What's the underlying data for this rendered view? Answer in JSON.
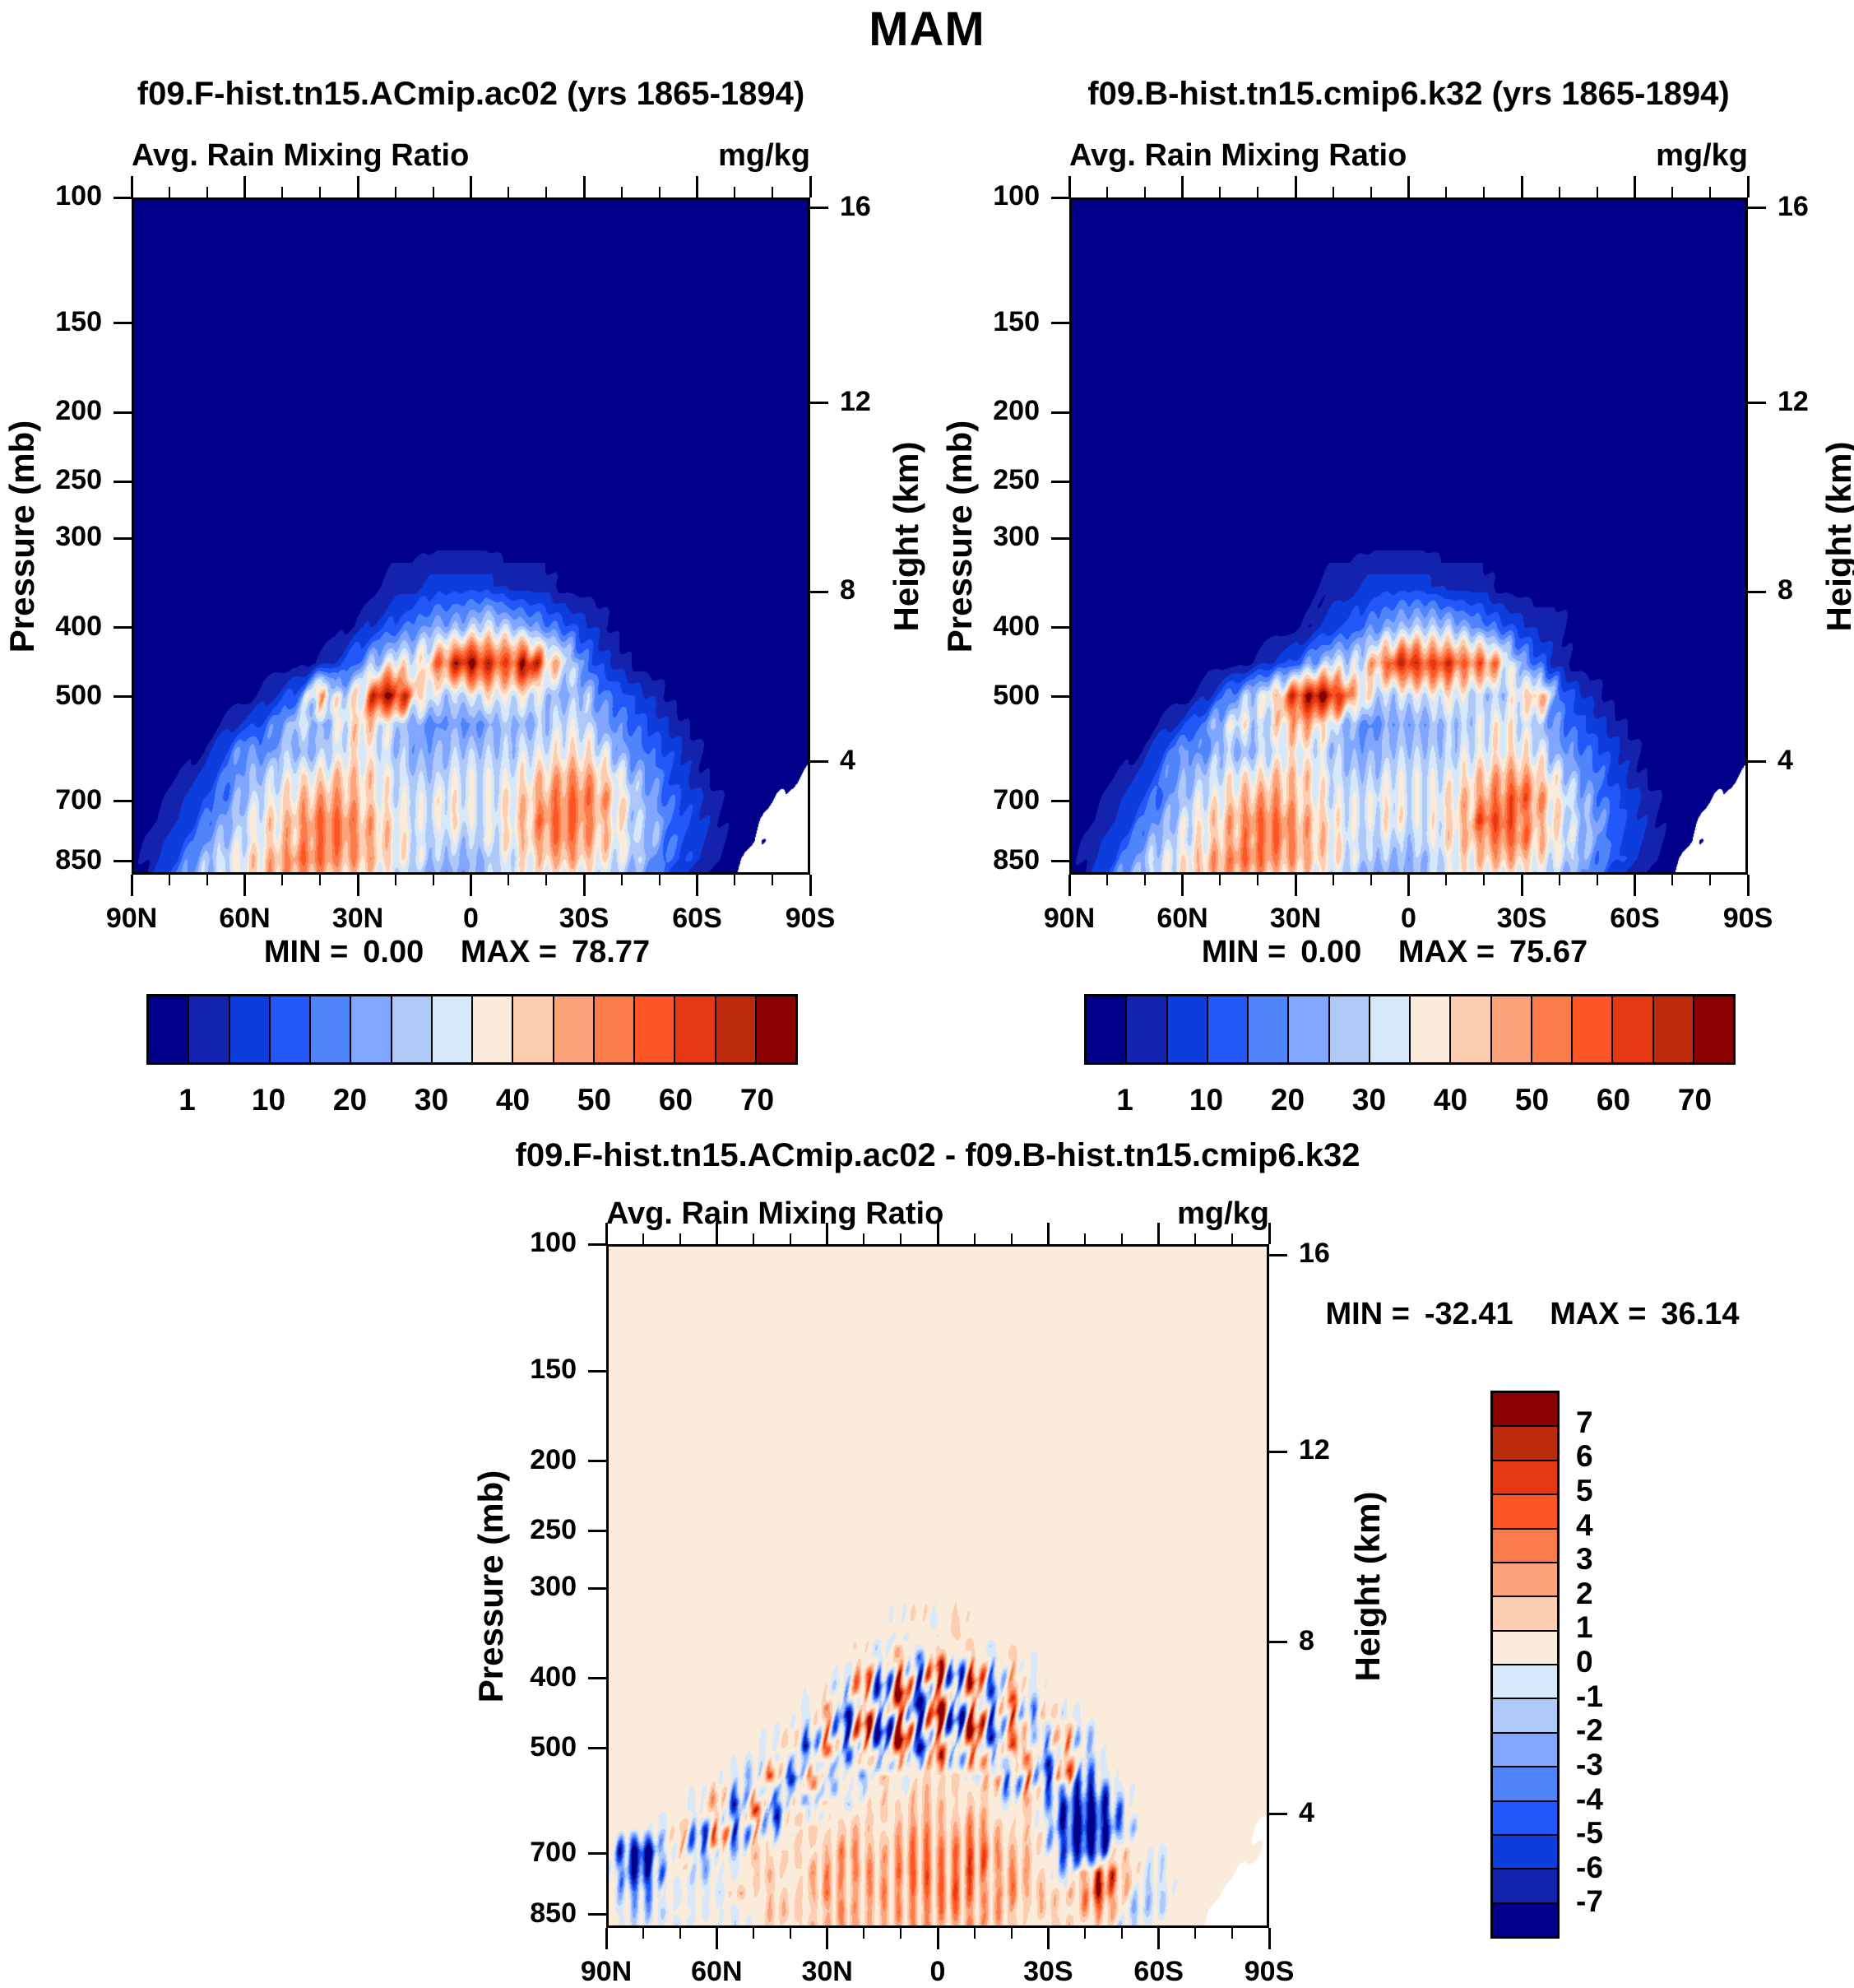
{
  "title": "MAM",
  "axes": {
    "pressure_label": "Pressure (mb)",
    "height_label": "Height (km)",
    "pressure_ticks": [
      "100",
      "150",
      "200",
      "250",
      "300",
      "400",
      "500",
      "700",
      "850"
    ],
    "pressure_tick_values": [
      100,
      150,
      200,
      250,
      300,
      400,
      500,
      700,
      850
    ],
    "pressure_top_mb": 100,
    "pressure_bottom_mb": 887,
    "height_ticks": [
      "16",
      "12",
      "8",
      "4"
    ],
    "height_tick_pressures_mb": [
      103.5,
      194.0,
      356.5,
      616.6
    ],
    "lat_tick_labels": [
      "90N",
      "60N",
      "30N",
      "0",
      "30S",
      "60S",
      "90S"
    ],
    "lat_major_step_deg": 30,
    "lat_minor_step_deg": 10
  },
  "panels": [
    {
      "title": "f09.F-hist.tn15.ACmip.ac02 (yrs 1865-1894)",
      "subtitle_left": "Avg. Rain Mixing Ratio",
      "units": "mg/kg",
      "min_label": "MIN =",
      "min_value": "0.00",
      "max_label": "MAX =",
      "max_value": "78.77"
    },
    {
      "title": "f09.B-hist.tn15.cmip6.k32 (yrs 1865-1894)",
      "subtitle_left": "Avg. Rain Mixing Ratio",
      "units": "mg/kg",
      "min_label": "MIN =",
      "min_value": "0.00",
      "max_label": "MAX =",
      "max_value": "75.67"
    },
    {
      "title": "f09.F-hist.tn15.ACmip.ac02 - f09.B-hist.tn15.cmip6.k32",
      "subtitle_left": "Avg. Rain Mixing Ratio",
      "units": "mg/kg",
      "min_label": "MIN =",
      "min_value": "-32.41",
      "max_label": "MAX =",
      "max_value": "36.14"
    }
  ],
  "colorbar_main": {
    "palette": [
      "#00008b",
      "#1423ae",
      "#0d3edd",
      "#2257fa",
      "#5084fa",
      "#80a6ff",
      "#aec8f8",
      "#d6e8fa",
      "#fbebda",
      "#fccdb0",
      "#fca379",
      "#fb7b4b",
      "#fd5523",
      "#e63812",
      "#bb2a0b",
      "#8b0000"
    ],
    "labels": [
      "1",
      "10",
      "20",
      "30",
      "40",
      "50",
      "60",
      "70"
    ],
    "label_boundary_indices": [
      1,
      3,
      5,
      7,
      9,
      11,
      13,
      15
    ],
    "n_cells": 16
  },
  "colorbar_diff": {
    "labels_top_to_bottom": [
      "7",
      "6",
      "5",
      "4",
      "3",
      "2",
      "1",
      "0",
      "-1",
      "-2",
      "-3",
      "-4",
      "-5",
      "-6",
      "-7"
    ],
    "n_cells": 16,
    "orientation": "vertical",
    "red_on_top": true
  },
  "chart_data": [
    {
      "type": "heatmap",
      "name": "f09.F-hist.tn15.ACmip.ac02 (yrs 1865-1894)",
      "variable": "Avg. Rain Mixing Ratio",
      "units": "mg/kg",
      "min": 0.0,
      "max": 78.77,
      "x": {
        "start_deg": -90,
        "step_deg": 5,
        "count": 37,
        "orientation": "90N left to 90S right"
      },
      "levels_mb": [
        100,
        150,
        200,
        250,
        300,
        350,
        400,
        450,
        500,
        550,
        600,
        650,
        700,
        750,
        800,
        850,
        887
      ],
      "bin_boundaries": [
        1,
        5,
        10,
        15,
        20,
        25,
        30,
        35,
        40,
        45,
        50,
        55,
        60,
        65,
        70
      ],
      "nodata_char": "x",
      "bins_hex_rows": [
        "0000000000000000000000000000000000000",
        "0000000000000000000000000000000000000",
        "0000000000000000000000000000000000000",
        "0000000000000000000000000000000000000",
        "0000000000000000000000000000000000000",
        "0000000000000011222211100000000000000",
        "0000000000001234556765432100000000000",
        "0000000000124687adfdcfa84210000000000",
        "0000000124b68ef9767878656432100000000",
        "0000012357579865454565677543210000000",
        "0000135465678765566667788754321000000",
        "00012456788998766777789aa97542100000x",
        "0012346789aa9877787789abba864321000xx",
        "001245789abba987787789bbb986532100xxx",
        "012356789abba987676789aba986532100xxx",
        "01246789abbaa9876656789a987643210xxxx",
        "01356789aaa9987655567888876542100xxxx"
      ]
    },
    {
      "type": "heatmap",
      "name": "f09.B-hist.tn15.cmip6.k32 (yrs 1865-1894)",
      "variable": "Avg. Rain Mixing Ratio",
      "units": "mg/kg",
      "min": 0.0,
      "max": 75.67,
      "x": {
        "start_deg": -90,
        "step_deg": 5,
        "count": 37,
        "orientation": "90N left to 90S right"
      },
      "levels_mb": [
        100,
        150,
        200,
        250,
        300,
        350,
        400,
        450,
        500,
        550,
        600,
        650,
        700,
        750,
        800,
        850,
        887
      ],
      "bin_boundaries": [
        1,
        5,
        10,
        15,
        20,
        25,
        30,
        35,
        40,
        45,
        50,
        55,
        60,
        65,
        70
      ],
      "nodata_char": "x",
      "bins_hex_rows": [
        "0000000000000000000000000000000000000",
        "0000000000000000000000000000000000000",
        "0000000000000000000000000000000000000",
        "0000000000000000000000000000000000000",
        "0000000000000000000000000000000000000",
        "0000000000000011222211100000000000000",
        "0000000000000123456665432110000000000",
        "00000000001235769cecdbc95310000000000",
        "000000013579dfea767787668a42100000000",
        "000001246868a975455566787643210000000",
        "0000135465678765566667788754321000000",
        "00012456788998766777789aa97542100000x",
        "0012346789aa9877787789abca864321000xx",
        "001245789abba987787789ccb986532100xxx",
        "012356789abba987676789abb986532100xxx",
        "01246789abbaa9876656789a987643210xxxx",
        "01356789aaa9987655567888876542100xxxx"
      ]
    },
    {
      "type": "heatmap",
      "name": "f09.F-hist.tn15.ACmip.ac02 - f09.B-hist.tn15.cmip6.k32",
      "variable": "Avg. Rain Mixing Ratio difference",
      "units": "mg/kg",
      "min": -32.41,
      "max": 36.14,
      "x": {
        "start_deg": -90,
        "step_deg": 5,
        "count": 37,
        "orientation": "90N left to 90S right"
      },
      "levels_mb": [
        100,
        150,
        200,
        250,
        300,
        350,
        400,
        450,
        500,
        550,
        600,
        650,
        700,
        750,
        800,
        850,
        887
      ],
      "bin_boundaries": [
        -7,
        -6,
        -5,
        -4,
        -3,
        -2,
        -1,
        0,
        1,
        2,
        3,
        4,
        5,
        6,
        7
      ],
      "nodata_char": "x",
      "bins_hex_rows": [
        "8888888888888888888888888888888888888",
        "8888888888888888888888888888888888888",
        "8888888888888888888888888888888888888",
        "8888888888888888888888888888888888888",
        "8888888888888888888888888888888888888",
        "8888888888888888797988888888888888888",
        "88888888888887b3e1f2d4a78888888888888",
        "888888888887a2d1f0f1e2c59788888888888",
        "888888888793c1e0f1e2f3b94c58888888888",
        "888888876b2d3a5979897a3c2b47888888888",
        "888887a3c1b49789899898796312688888888",
        "888794c2a58989989a99a989720158888888x",
        "8206a39698989a99aaaaba99841398788888x",
        "831786879989a9a9abaab9a9869ca878888xx",
        "865878798989a99a9aaba9a998ad976888xxx",
        "8767878789989a99a9aa9a98989a86788xxxx",
        "8778788789899a999a99a998898977888xxxx"
      ]
    }
  ]
}
